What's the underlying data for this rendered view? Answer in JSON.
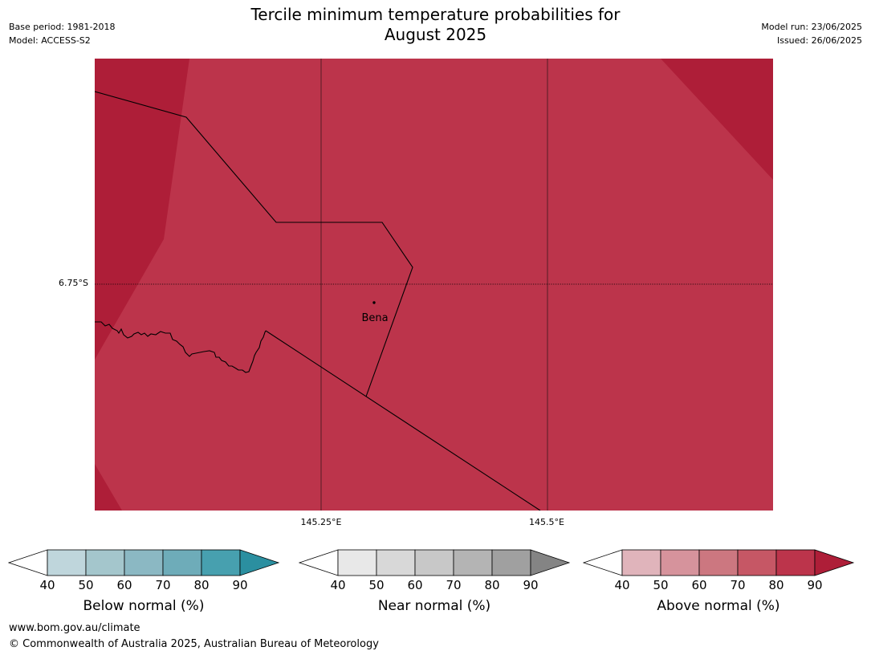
{
  "header": {
    "title_line1": "Tercile minimum temperature probabilities for",
    "title_line2": "August 2025",
    "base_period": "Base period: 1981-2018",
    "model": "Model: ACCESS-S2",
    "model_run": "Model run: 23/06/2025",
    "issued": "Issued: 26/06/2025"
  },
  "map": {
    "latitude_label": "6.75°S",
    "longitude_labels": [
      "145.25°E",
      "145.5°E"
    ],
    "place": {
      "name": "Bena"
    },
    "colors": {
      "above_70_80": "#bc344b",
      "above_80_90": "#ae1e38",
      "boundary": "#000000"
    }
  },
  "colorbars": [
    {
      "id": "below",
      "title": "Below normal (%)",
      "ticks": [
        "40",
        "50",
        "60",
        "70",
        "80",
        "90"
      ],
      "colors": [
        "#ffffff",
        "#bfd6dc",
        "#a4c6cc",
        "#8bb8c3",
        "#6eacb9",
        "#47a0af",
        "#2b8fa0"
      ]
    },
    {
      "id": "near",
      "title": "Near normal (%)",
      "ticks": [
        "40",
        "50",
        "60",
        "70",
        "80",
        "90"
      ],
      "colors": [
        "#ffffff",
        "#e8e8e8",
        "#d8d8d8",
        "#c8c8c8",
        "#b4b4b4",
        "#a0a0a0",
        "#848484"
      ]
    },
    {
      "id": "above",
      "title": "Above normal (%)",
      "ticks": [
        "40",
        "50",
        "60",
        "70",
        "80",
        "90"
      ],
      "colors": [
        "#ffffff",
        "#e0b4bb",
        "#d6939c",
        "#cc7780",
        "#c65765",
        "#bc344b",
        "#ae1e38"
      ]
    }
  ],
  "footer": {
    "url": "www.bom.gov.au/climate",
    "copyright": "© Commonwealth of Australia 2025, Australian Bureau of Meteorology"
  }
}
